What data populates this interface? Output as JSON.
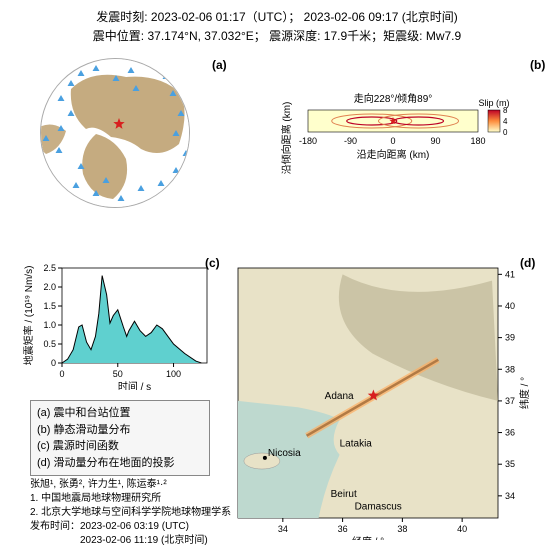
{
  "header": {
    "line1": "发震时刻: 2023-02-06 01:17（UTC）；  2023-02-06  09:17 (北京时间)",
    "line2": "震中位置: 37.174°N,  37.032°E；  震源深度: 17.9千米；矩震级: Mw7.9"
  },
  "panel_labels": {
    "a": "(a)",
    "b": "(b)",
    "c": "(c)",
    "d": "(d)"
  },
  "globe": {
    "land_color": "#c2a679",
    "ocean_color": "#ffffff",
    "station_color": "#4aa0e0",
    "star_color": "#d81e1e",
    "stations": [
      [
        40,
        15
      ],
      [
        55,
        10
      ],
      [
        75,
        20
      ],
      [
        30,
        25
      ],
      [
        20,
        40
      ],
      [
        30,
        55
      ],
      [
        95,
        30
      ],
      [
        125,
        18
      ],
      [
        132,
        35
      ],
      [
        140,
        55
      ],
      [
        135,
        75
      ],
      [
        145,
        95
      ],
      [
        20,
        70
      ],
      [
        5,
        80
      ],
      [
        18,
        92
      ],
      [
        40,
        108
      ],
      [
        65,
        122
      ],
      [
        55,
        135
      ],
      [
        80,
        140
      ],
      [
        100,
        130
      ],
      [
        120,
        125
      ],
      [
        135,
        112
      ],
      [
        35,
        127
      ],
      [
        90,
        12
      ]
    ],
    "epicenter": [
      78,
      65
    ]
  },
  "slip": {
    "title": "走向228°/倾角89°",
    "xlabel": "沿走向距离 (km)",
    "ylabel": "沿倾向距离 (km)",
    "slip_label": "Slip (m)",
    "xticks": [
      "-180",
      "-90",
      "0",
      "90",
      "180"
    ],
    "yticks": [
      ""
    ],
    "cticks": [
      "8",
      "4",
      "0"
    ],
    "colors": {
      "low": "#ffffcc",
      "med": "#fd8d3c",
      "high": "#bd0026",
      "contour": "#e08050"
    }
  },
  "stf": {
    "xlabel": "时间 / s",
    "ylabel": "地震矩率 / (10¹⁹ Nm/s)",
    "xticks": [
      "0",
      "50",
      "100"
    ],
    "yticks": [
      "0",
      "0.5",
      "1.0",
      "1.5",
      "2.0",
      "2.5"
    ],
    "fill": "#5fd0cf",
    "stroke": "#000000",
    "series_x": [
      0,
      5,
      10,
      15,
      18,
      22,
      26,
      30,
      33,
      36,
      40,
      43,
      46,
      50,
      55,
      58,
      60,
      65,
      70,
      75,
      80,
      85,
      90,
      95,
      100,
      110,
      120,
      125
    ],
    "series_y": [
      0,
      0.1,
      0.35,
      0.95,
      1.0,
      0.55,
      0.35,
      0.7,
      1.3,
      2.3,
      1.8,
      1.05,
      1.25,
      1.4,
      0.95,
      0.7,
      0.85,
      1.1,
      0.85,
      0.7,
      0.8,
      1.0,
      0.9,
      0.7,
      0.5,
      0.25,
      0.05,
      0
    ]
  },
  "legend": {
    "items": [
      "(a) 震中和台站位置",
      "(b) 静态滑动量分布",
      "(c) 震源时间函数",
      "(d) 滑动量分布在地面的投影"
    ]
  },
  "credits": {
    "authors": "张旭¹, 张勇², 许力生¹, 陈运泰¹·²",
    "affil1": "1. 中国地震局地球物理研究所",
    "affil2": "2. 北京大学地球与空间科学学院地球物理学系",
    "time1": "发布时间：2023-02-06  03:19 (UTC)",
    "time2": "2023-02-06  11:19 (北京时间)"
  },
  "map": {
    "xlabel": "经度 / °",
    "ylabel": "纬度 / °",
    "xticks": [
      "34",
      "36",
      "38",
      "40"
    ],
    "yticks": [
      "34",
      "35",
      "36",
      "37",
      "38",
      "39",
      "40",
      "41"
    ],
    "extent": {
      "xmin": 32.5,
      "xmax": 41.2,
      "ymin": 33.3,
      "ymax": 41.2
    },
    "water": "#bed9cf",
    "land_low": "#e8e2c7",
    "land_high": "#b8b090",
    "cities": [
      {
        "name": "Adana",
        "lon": 35.3,
        "lat": 37.0
      },
      {
        "name": "Nicosia",
        "lon": 33.4,
        "lat": 35.2,
        "dot": true
      },
      {
        "name": "Latakia",
        "lon": 35.8,
        "lat": 35.5
      },
      {
        "name": "Beirut",
        "lon": 35.5,
        "lat": 33.9
      },
      {
        "name": "Damascus",
        "lon": 36.3,
        "lat": 33.5
      }
    ],
    "fault": {
      "lon1": 34.8,
      "lat1": 35.9,
      "lon2": 39.2,
      "lat2": 38.3
    },
    "epicenter": {
      "lon": 37.03,
      "lat": 37.17
    }
  }
}
